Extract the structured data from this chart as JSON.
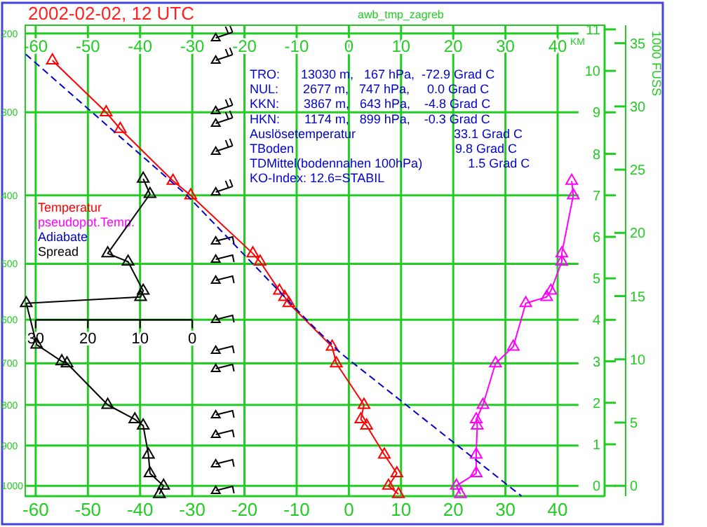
{
  "chart_data": [
    {
      "type": "line",
      "title": "2002-02-02, 12 UTC",
      "subtitle": "awb_tmp_zagreb",
      "xlim": [
        -62,
        49
      ],
      "xticks": [
        -60,
        -50,
        -40,
        -30,
        -20,
        -10,
        0,
        10,
        20,
        30,
        40
      ],
      "x2lim": [
        -62,
        49
      ],
      "x2ticks": [
        -60,
        -50,
        -40,
        -30,
        -20,
        -10,
        0,
        10,
        20,
        30,
        40
      ],
      "ylim": [
        -0.25,
        11.1
      ],
      "yticks": [
        0,
        1,
        2,
        3,
        4,
        5,
        6,
        7,
        8,
        9,
        10,
        11
      ],
      "ylabel": "KM",
      "y2lim": [
        -0.82,
        36.42
      ],
      "y2ticks": [
        0,
        5,
        10,
        15,
        20,
        25,
        30,
        35
      ],
      "y2label": "1000 FUSS",
      "ref_lines": [
        {
          "axis": "y",
          "value": 0
        },
        {
          "axis": "y",
          "value": 0.97
        },
        {
          "axis": "y",
          "value": 1.95
        },
        {
          "axis": "y",
          "value": 2.95
        },
        {
          "axis": "y",
          "value": 4.0
        },
        {
          "axis": "y",
          "value": 5.35
        },
        {
          "axis": "y",
          "value": 7.0
        },
        {
          "axis": "y",
          "value": 9.0
        },
        {
          "axis": "y",
          "value": 10.9
        }
      ],
      "grid": "x",
      "legend": "left",
      "marker": "triangle",
      "annotations": [
        "1000",
        "900",
        "800",
        "700",
        "600",
        "500",
        "400",
        "300",
        "200",
        "TRO:      13030 m,   167 hPa,  -72.9 Grad C",
        "NUL:       2677 m,   747 hPa,     0.0 Grad C",
        "KKN:       3867 m,   643 hPa,    -4.8 Grad C",
        "HKN:       1174 m,   899 hPa,    -0.3 Grad C",
        "Auslösetemperatur                            33.1 Grad C",
        "TBoden                                              9.8 Grad C",
        "TDMittel(bodennahen 100hPa)             1.5 Grad C",
        "KO-Index: 12.6=STABIL"
      ],
      "series": [
        {
          "name": "Temperatur",
          "color": "#ff0000",
          "x": [
            -56.8,
            -46.5,
            -43.8,
            -33.7,
            -30.3,
            -18.4,
            -17.0,
            -13.3,
            -12.3,
            -11.5,
            -3.2,
            -2.4,
            2.9,
            2.3,
            3.4,
            6.8,
            9.2,
            7.6,
            9.5
          ],
          "values": [
            10.25,
            9.0,
            8.6,
            7.35,
            7.0,
            5.6,
            5.4,
            4.7,
            4.55,
            4.4,
            3.35,
            2.95,
            1.95,
            1.6,
            1.45,
            0.75,
            0.3,
            0,
            -0.2
          ]
        },
        {
          "name": "pseudopot.Temp.",
          "color": "#ff00ff",
          "x": [
            42.7,
            43.0,
            40.8,
            40.8,
            38.7,
            37.9,
            33.9,
            31.5,
            28.1,
            25.7,
            24.4,
            24.6,
            24.4,
            24.4,
            20.6,
            21.4
          ],
          "values": [
            7.35,
            7.0,
            5.6,
            5.4,
            4.7,
            4.55,
            4.4,
            3.35,
            2.95,
            1.95,
            1.6,
            1.45,
            0.75,
            0.3,
            0,
            -0.2
          ]
        },
        {
          "name": "Adiabate",
          "color": "#0000cc",
          "line_style": "dashed",
          "marker": "none",
          "x": [
            -61.9,
            -31,
            -7.7,
            -1.6,
            33.1
          ],
          "values": [
            10.4,
            7.0,
            3.95,
            3.2,
            -0.25
          ]
        }
      ]
    },
    {
      "type": "line",
      "xlim": [
        32,
        -79
      ],
      "xticks": [
        30,
        20,
        10,
        0
      ],
      "ylim": [
        -0.25,
        11.1
      ],
      "tick_labels": "x",
      "legend": "left",
      "marker": "triangle",
      "series": [
        {
          "name": "Spread",
          "color": "#000000",
          "x": [
            9.4,
            8.1,
            16.2,
            12.3,
            9.4,
            9.9,
            31.8,
            29.8,
            25.0,
            24.0,
            16.2,
            11.0,
            9.4,
            8.4,
            8.1,
            5.5,
            6.3
          ],
          "values": [
            7.4,
            7.03,
            5.6,
            5.4,
            4.7,
            4.55,
            4.4,
            3.4,
            3.0,
            2.95,
            1.95,
            1.6,
            1.45,
            0.75,
            0.3,
            0,
            -0.2
          ]
        }
      ]
    }
  ]
}
